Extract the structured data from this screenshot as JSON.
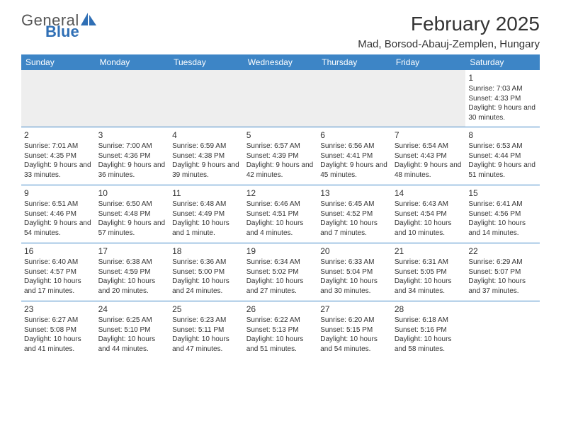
{
  "logo": {
    "general": "General",
    "blue": "Blue"
  },
  "title": "February 2025",
  "location": "Mad, Borsod-Abauj-Zemplen, Hungary",
  "colors": {
    "header_bg": "#3d85c6",
    "header_text": "#ffffff",
    "logo_blue": "#2f6fb5",
    "border": "#3d85c6",
    "empty_bg": "#eeeeee",
    "text": "#333333"
  },
  "day_headers": [
    "Sunday",
    "Monday",
    "Tuesday",
    "Wednesday",
    "Thursday",
    "Friday",
    "Saturday"
  ],
  "weeks": [
    [
      null,
      null,
      null,
      null,
      null,
      null,
      {
        "n": "1",
        "sunrise": "Sunrise: 7:03 AM",
        "sunset": "Sunset: 4:33 PM",
        "daylight": "Daylight: 9 hours and 30 minutes."
      }
    ],
    [
      {
        "n": "2",
        "sunrise": "Sunrise: 7:01 AM",
        "sunset": "Sunset: 4:35 PM",
        "daylight": "Daylight: 9 hours and 33 minutes."
      },
      {
        "n": "3",
        "sunrise": "Sunrise: 7:00 AM",
        "sunset": "Sunset: 4:36 PM",
        "daylight": "Daylight: 9 hours and 36 minutes."
      },
      {
        "n": "4",
        "sunrise": "Sunrise: 6:59 AM",
        "sunset": "Sunset: 4:38 PM",
        "daylight": "Daylight: 9 hours and 39 minutes."
      },
      {
        "n": "5",
        "sunrise": "Sunrise: 6:57 AM",
        "sunset": "Sunset: 4:39 PM",
        "daylight": "Daylight: 9 hours and 42 minutes."
      },
      {
        "n": "6",
        "sunrise": "Sunrise: 6:56 AM",
        "sunset": "Sunset: 4:41 PM",
        "daylight": "Daylight: 9 hours and 45 minutes."
      },
      {
        "n": "7",
        "sunrise": "Sunrise: 6:54 AM",
        "sunset": "Sunset: 4:43 PM",
        "daylight": "Daylight: 9 hours and 48 minutes."
      },
      {
        "n": "8",
        "sunrise": "Sunrise: 6:53 AM",
        "sunset": "Sunset: 4:44 PM",
        "daylight": "Daylight: 9 hours and 51 minutes."
      }
    ],
    [
      {
        "n": "9",
        "sunrise": "Sunrise: 6:51 AM",
        "sunset": "Sunset: 4:46 PM",
        "daylight": "Daylight: 9 hours and 54 minutes."
      },
      {
        "n": "10",
        "sunrise": "Sunrise: 6:50 AM",
        "sunset": "Sunset: 4:48 PM",
        "daylight": "Daylight: 9 hours and 57 minutes."
      },
      {
        "n": "11",
        "sunrise": "Sunrise: 6:48 AM",
        "sunset": "Sunset: 4:49 PM",
        "daylight": "Daylight: 10 hours and 1 minute."
      },
      {
        "n": "12",
        "sunrise": "Sunrise: 6:46 AM",
        "sunset": "Sunset: 4:51 PM",
        "daylight": "Daylight: 10 hours and 4 minutes."
      },
      {
        "n": "13",
        "sunrise": "Sunrise: 6:45 AM",
        "sunset": "Sunset: 4:52 PM",
        "daylight": "Daylight: 10 hours and 7 minutes."
      },
      {
        "n": "14",
        "sunrise": "Sunrise: 6:43 AM",
        "sunset": "Sunset: 4:54 PM",
        "daylight": "Daylight: 10 hours and 10 minutes."
      },
      {
        "n": "15",
        "sunrise": "Sunrise: 6:41 AM",
        "sunset": "Sunset: 4:56 PM",
        "daylight": "Daylight: 10 hours and 14 minutes."
      }
    ],
    [
      {
        "n": "16",
        "sunrise": "Sunrise: 6:40 AM",
        "sunset": "Sunset: 4:57 PM",
        "daylight": "Daylight: 10 hours and 17 minutes."
      },
      {
        "n": "17",
        "sunrise": "Sunrise: 6:38 AM",
        "sunset": "Sunset: 4:59 PM",
        "daylight": "Daylight: 10 hours and 20 minutes."
      },
      {
        "n": "18",
        "sunrise": "Sunrise: 6:36 AM",
        "sunset": "Sunset: 5:00 PM",
        "daylight": "Daylight: 10 hours and 24 minutes."
      },
      {
        "n": "19",
        "sunrise": "Sunrise: 6:34 AM",
        "sunset": "Sunset: 5:02 PM",
        "daylight": "Daylight: 10 hours and 27 minutes."
      },
      {
        "n": "20",
        "sunrise": "Sunrise: 6:33 AM",
        "sunset": "Sunset: 5:04 PM",
        "daylight": "Daylight: 10 hours and 30 minutes."
      },
      {
        "n": "21",
        "sunrise": "Sunrise: 6:31 AM",
        "sunset": "Sunset: 5:05 PM",
        "daylight": "Daylight: 10 hours and 34 minutes."
      },
      {
        "n": "22",
        "sunrise": "Sunrise: 6:29 AM",
        "sunset": "Sunset: 5:07 PM",
        "daylight": "Daylight: 10 hours and 37 minutes."
      }
    ],
    [
      {
        "n": "23",
        "sunrise": "Sunrise: 6:27 AM",
        "sunset": "Sunset: 5:08 PM",
        "daylight": "Daylight: 10 hours and 41 minutes."
      },
      {
        "n": "24",
        "sunrise": "Sunrise: 6:25 AM",
        "sunset": "Sunset: 5:10 PM",
        "daylight": "Daylight: 10 hours and 44 minutes."
      },
      {
        "n": "25",
        "sunrise": "Sunrise: 6:23 AM",
        "sunset": "Sunset: 5:11 PM",
        "daylight": "Daylight: 10 hours and 47 minutes."
      },
      {
        "n": "26",
        "sunrise": "Sunrise: 6:22 AM",
        "sunset": "Sunset: 5:13 PM",
        "daylight": "Daylight: 10 hours and 51 minutes."
      },
      {
        "n": "27",
        "sunrise": "Sunrise: 6:20 AM",
        "sunset": "Sunset: 5:15 PM",
        "daylight": "Daylight: 10 hours and 54 minutes."
      },
      {
        "n": "28",
        "sunrise": "Sunrise: 6:18 AM",
        "sunset": "Sunset: 5:16 PM",
        "daylight": "Daylight: 10 hours and 58 minutes."
      },
      null
    ]
  ]
}
